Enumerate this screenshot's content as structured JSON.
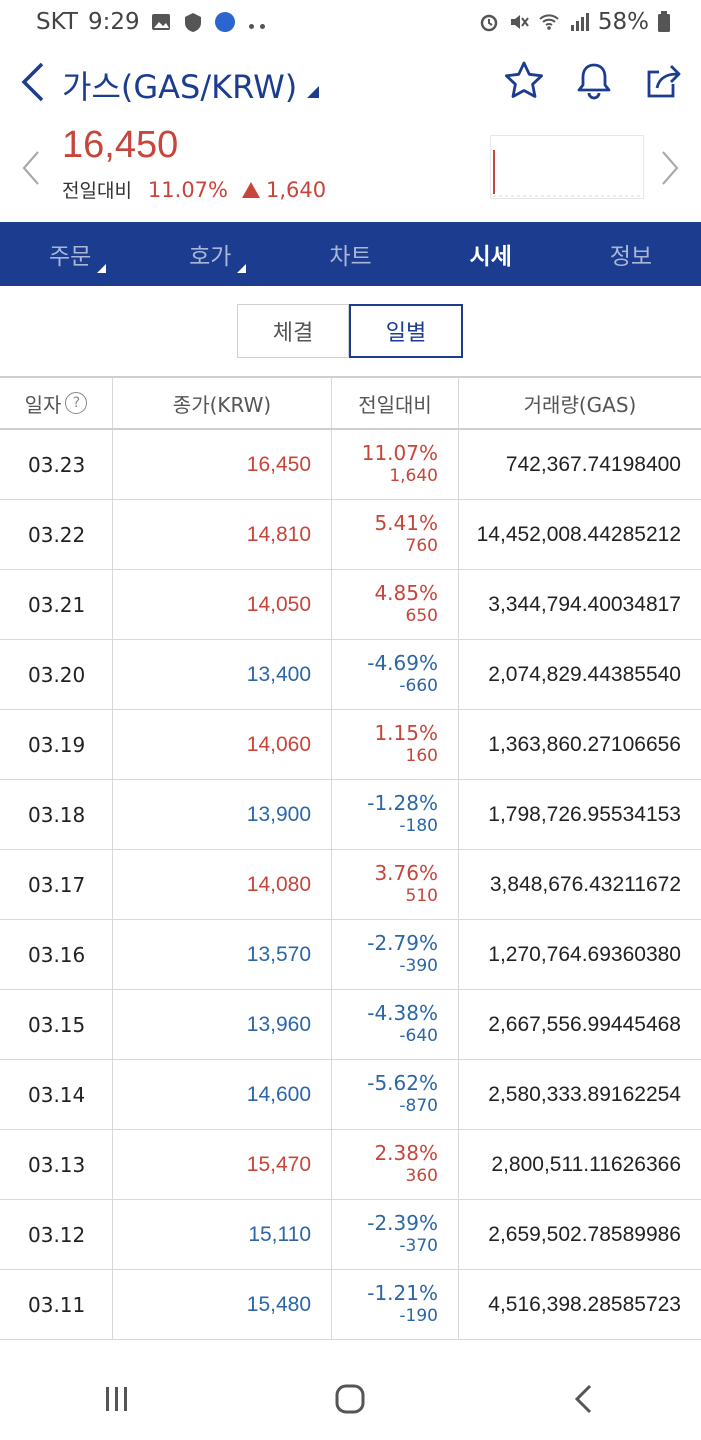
{
  "status_bar": {
    "carrier": "SKT",
    "time": "9:29",
    "battery": "58%"
  },
  "header": {
    "title": "가스(GAS/KRW)"
  },
  "price": {
    "current": "16,450",
    "change_label": "전일대비",
    "change_pct": "11.07%",
    "change_amount": "1,640",
    "direction": "up"
  },
  "tabs": [
    {
      "label": "주문",
      "active": false,
      "has_sub": true
    },
    {
      "label": "호가",
      "active": false,
      "has_sub": true
    },
    {
      "label": "차트",
      "active": false,
      "has_sub": false
    },
    {
      "label": "시세",
      "active": true,
      "has_sub": false
    },
    {
      "label": "정보",
      "active": false,
      "has_sub": false
    }
  ],
  "segments": [
    {
      "label": "체결",
      "active": false
    },
    {
      "label": "일별",
      "active": true
    }
  ],
  "table": {
    "headers": [
      "일자",
      "종가(KRW)",
      "전일대비",
      "거래량(GAS)"
    ],
    "rows": [
      {
        "date": "03.23",
        "close": "16,450",
        "pct": "11.07%",
        "amt": "1,640",
        "volume": "742,367.74198400",
        "dir": "up"
      },
      {
        "date": "03.22",
        "close": "14,810",
        "pct": "5.41%",
        "amt": "760",
        "volume": "14,452,008.44285212",
        "dir": "up"
      },
      {
        "date": "03.21",
        "close": "14,050",
        "pct": "4.85%",
        "amt": "650",
        "volume": "3,344,794.40034817",
        "dir": "up"
      },
      {
        "date": "03.20",
        "close": "13,400",
        "pct": "-4.69%",
        "amt": "-660",
        "volume": "2,074,829.44385540",
        "dir": "down"
      },
      {
        "date": "03.19",
        "close": "14,060",
        "pct": "1.15%",
        "amt": "160",
        "volume": "1,363,860.27106656",
        "dir": "up"
      },
      {
        "date": "03.18",
        "close": "13,900",
        "pct": "-1.28%",
        "amt": "-180",
        "volume": "1,798,726.95534153",
        "dir": "down"
      },
      {
        "date": "03.17",
        "close": "14,080",
        "pct": "3.76%",
        "amt": "510",
        "volume": "3,848,676.43211672",
        "dir": "up"
      },
      {
        "date": "03.16",
        "close": "13,570",
        "pct": "-2.79%",
        "amt": "-390",
        "volume": "1,270,764.69360380",
        "dir": "down"
      },
      {
        "date": "03.15",
        "close": "13,960",
        "pct": "-4.38%",
        "amt": "-640",
        "volume": "2,667,556.99445468",
        "dir": "down"
      },
      {
        "date": "03.14",
        "close": "14,600",
        "pct": "-5.62%",
        "amt": "-870",
        "volume": "2,580,333.89162254",
        "dir": "down"
      },
      {
        "date": "03.13",
        "close": "15,470",
        "pct": "2.38%",
        "amt": "360",
        "volume": "2,800,511.11626366",
        "dir": "up"
      },
      {
        "date": "03.12",
        "close": "15,110",
        "pct": "-2.39%",
        "amt": "-370",
        "volume": "2,659,502.78589986",
        "dir": "down"
      },
      {
        "date": "03.11",
        "close": "15,480",
        "pct": "-1.21%",
        "amt": "-190",
        "volume": "4,516,398.28585723",
        "dir": "down"
      }
    ]
  },
  "colors": {
    "brand": "#1c3d8f",
    "up": "#c8453b",
    "down": "#2b66a8"
  },
  "icons": [
    "back-icon",
    "star-icon",
    "bell-icon",
    "share-icon",
    "chevron-left-icon",
    "chevron-right-icon",
    "help-icon",
    "recent-apps-icon",
    "home-icon",
    "back-nav-icon"
  ]
}
